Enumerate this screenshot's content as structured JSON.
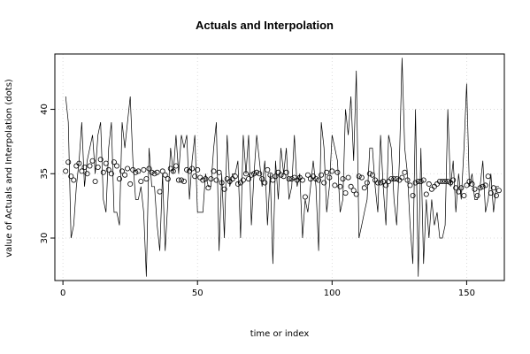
{
  "chart_data": {
    "type": "line",
    "title": "Actuals and Interpolation",
    "xlabel": "time or index",
    "ylabel": "value of Actuals and Interpolation (dots)",
    "xlim": [
      -3,
      164
    ],
    "ylim": [
      26.7,
      44.3
    ],
    "xticks": [
      0,
      50,
      100,
      150
    ],
    "yticks": [
      30,
      35,
      40
    ],
    "grid": true,
    "series": [
      {
        "style": "line",
        "x": [
          1,
          2,
          3,
          4,
          5,
          6,
          7,
          8,
          9,
          10,
          11,
          12,
          13,
          14,
          15,
          16,
          17,
          18,
          19,
          20,
          21,
          22,
          23,
          24,
          25,
          26,
          27,
          28,
          29,
          30,
          31,
          32,
          33,
          34,
          35,
          36,
          37,
          38,
          39,
          40,
          41,
          42,
          43,
          44,
          45,
          46,
          47,
          48,
          49,
          50,
          51,
          52,
          53,
          54,
          55,
          56,
          57,
          58,
          59,
          60,
          61,
          62,
          63,
          64,
          65,
          66,
          67,
          68,
          69,
          70,
          71,
          72,
          73,
          74,
          75,
          76,
          77,
          78,
          79,
          80,
          81,
          82,
          83,
          84,
          85,
          86,
          87,
          88,
          89,
          90,
          91,
          92,
          93,
          94,
          95,
          96,
          97,
          98,
          99,
          100,
          101,
          102,
          103,
          104,
          105,
          106,
          107,
          108,
          109,
          110,
          111,
          112,
          113,
          114,
          115,
          116,
          117,
          118,
          119,
          120,
          121,
          122,
          123,
          124,
          125,
          126,
          127,
          128,
          129,
          130,
          131,
          132,
          133,
          134,
          135,
          136,
          137,
          138,
          139,
          140,
          141,
          142,
          143,
          144,
          145,
          146,
          147,
          148,
          149,
          150,
          151,
          152,
          153,
          154,
          155,
          156,
          157,
          158,
          159,
          160,
          161,
          162
        ],
        "values": [
          41,
          39,
          30,
          31,
          34,
          36,
          39,
          34,
          36,
          37,
          38,
          35,
          38,
          39,
          33,
          32,
          37,
          39,
          32,
          32,
          31,
          39,
          37,
          39,
          41,
          36,
          33,
          33,
          34,
          32,
          27,
          37,
          34,
          34,
          31,
          29,
          35,
          29,
          33,
          37,
          35,
          38,
          35,
          38,
          37,
          38,
          33,
          36,
          38,
          32,
          32,
          32,
          35,
          34,
          34,
          37,
          39,
          29,
          35,
          30,
          38,
          34,
          35,
          35,
          36,
          30,
          38,
          35,
          38,
          31,
          35,
          38,
          36,
          34,
          36,
          31,
          35,
          28,
          36,
          33,
          37,
          35,
          37,
          33,
          34,
          38,
          34,
          35,
          30,
          33,
          32,
          34,
          36,
          34,
          29,
          39,
          37,
          32,
          34,
          38,
          37,
          36,
          32,
          33,
          40,
          38,
          41,
          36,
          43,
          30,
          31,
          32,
          33,
          37,
          37,
          34,
          32,
          38,
          34,
          31,
          38,
          37,
          33,
          31,
          36,
          44,
          37,
          35,
          31,
          28,
          40,
          27,
          37,
          28,
          33,
          30,
          33,
          31,
          32,
          30,
          30,
          31,
          40,
          34,
          36,
          32,
          35,
          33,
          37,
          42,
          34,
          35,
          33,
          33,
          34,
          36,
          32,
          33,
          35,
          32,
          34,
          34
        ]
      },
      {
        "style": "points",
        "x": [
          1,
          2,
          3,
          4,
          5,
          6,
          7,
          8,
          9,
          10,
          11,
          12,
          13,
          14,
          15,
          16,
          17,
          18,
          19,
          20,
          21,
          22,
          23,
          24,
          25,
          26,
          27,
          28,
          29,
          30,
          31,
          32,
          33,
          34,
          35,
          36,
          37,
          38,
          39,
          40,
          41,
          42,
          43,
          44,
          45,
          46,
          47,
          48,
          49,
          50,
          51,
          52,
          53,
          54,
          55,
          56,
          57,
          58,
          59,
          60,
          61,
          62,
          63,
          64,
          65,
          66,
          67,
          68,
          69,
          70,
          71,
          72,
          73,
          74,
          75,
          76,
          77,
          78,
          79,
          80,
          81,
          82,
          83,
          84,
          85,
          86,
          87,
          88,
          89,
          90,
          91,
          92,
          93,
          94,
          95,
          96,
          97,
          98,
          99,
          100,
          101,
          102,
          103,
          104,
          105,
          106,
          107,
          108,
          109,
          110,
          111,
          112,
          113,
          114,
          115,
          116,
          117,
          118,
          119,
          120,
          121,
          122,
          123,
          124,
          125,
          126,
          127,
          128,
          129,
          130,
          131,
          132,
          133,
          134,
          135,
          136,
          137,
          138,
          139,
          140,
          141,
          142,
          143,
          144,
          145,
          146,
          147,
          148,
          149,
          150,
          151,
          152,
          153,
          154,
          155,
          156,
          157,
          158,
          159,
          160,
          161,
          162
        ],
        "values": [
          35.2,
          35.9,
          34.8,
          34.5,
          35.6,
          35.8,
          35.2,
          35.5,
          35.0,
          35.6,
          36.0,
          34.4,
          35.5,
          36.1,
          35.1,
          35.8,
          35.3,
          35.0,
          35.9,
          35.6,
          34.6,
          35.2,
          34.9,
          35.4,
          34.2,
          35.3,
          35.1,
          35.2,
          34.4,
          35.3,
          34.6,
          35.4,
          35.1,
          35.0,
          35.1,
          33.6,
          35.2,
          34.9,
          34.6,
          35.4,
          35.2,
          35.6,
          34.5,
          34.5,
          34.4,
          35.3,
          35.2,
          35.4,
          34.8,
          35.3,
          34.7,
          34.5,
          34.6,
          33.9,
          34.6,
          35.2,
          34.5,
          35.1,
          34.3,
          33.8,
          34.6,
          34.4,
          34.6,
          34.8,
          34.2,
          34.3,
          34.5,
          35.0,
          34.6,
          34.9,
          35.0,
          35.1,
          35.0,
          34.6,
          34.3,
          35.3,
          34.9,
          34.5,
          34.8,
          35.1,
          34.9,
          34.8,
          35.1,
          34.6,
          34.6,
          34.7,
          34.5,
          34.7,
          34.5,
          33.2,
          34.9,
          34.6,
          34.8,
          34.6,
          34.5,
          34.9,
          34.3,
          35.1,
          34.7,
          35.2,
          34.1,
          35.1,
          34.0,
          34.6,
          33.5,
          34.7,
          34.0,
          33.7,
          33.4,
          34.8,
          34.7,
          33.9,
          34.3,
          35.0,
          34.9,
          34.5,
          34.3,
          34.3,
          34.4,
          34.1,
          34.4,
          34.6,
          34.6,
          34.6,
          34.5,
          34.7,
          35.1,
          34.5,
          34.1,
          33.3,
          34.3,
          34.4,
          34.4,
          34.5,
          33.4,
          34.2,
          33.8,
          34.0,
          34.2,
          34.4,
          34.4,
          34.4,
          34.4,
          34.3,
          34.5,
          33.9,
          33.6,
          33.9,
          33.3,
          34.1,
          34.4,
          34.2,
          33.8,
          33.3,
          33.9,
          34.0,
          34.1,
          34.8,
          33.5,
          33.9,
          33.3,
          33.7
        ]
      }
    ]
  }
}
